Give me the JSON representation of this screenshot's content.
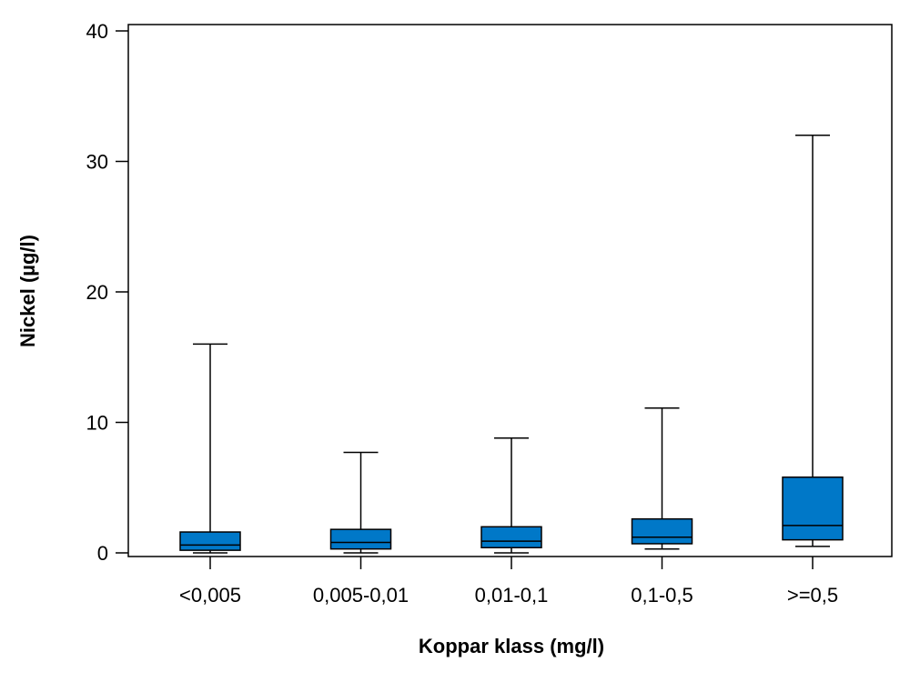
{
  "chart_data": {
    "type": "boxplot",
    "xlabel": "Koppar klass (mg/l)",
    "ylabel": "Nickel (µg/l)",
    "ylim": [
      0,
      40
    ],
    "yticks": [
      0,
      10,
      20,
      30,
      40
    ],
    "grid": false,
    "legend": "none",
    "box_color": "#0078c8",
    "categories": [
      "<0,005",
      "0,005-0,01",
      "0,01-0,1",
      "0,1-0,5",
      ">=0,5"
    ],
    "boxes": [
      {
        "min": 0.0,
        "q1": 0.2,
        "median": 0.6,
        "q3": 1.6,
        "max": 16.0
      },
      {
        "min": 0.0,
        "q1": 0.3,
        "median": 0.8,
        "q3": 1.8,
        "max": 7.7
      },
      {
        "min": 0.0,
        "q1": 0.4,
        "median": 0.9,
        "q3": 2.0,
        "max": 8.8
      },
      {
        "min": 0.3,
        "q1": 0.7,
        "median": 1.2,
        "q3": 2.6,
        "max": 11.1
      },
      {
        "min": 0.5,
        "q1": 1.0,
        "median": 2.1,
        "q3": 5.8,
        "max": 32.0
      }
    ]
  }
}
